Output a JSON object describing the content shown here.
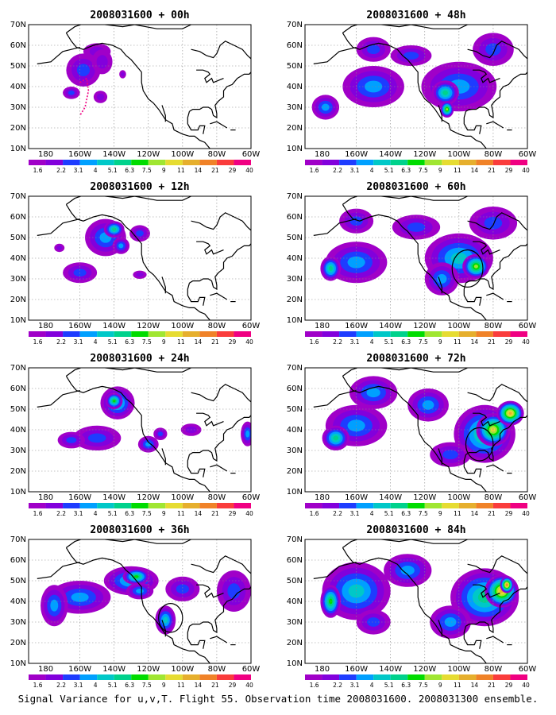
{
  "caption": "Signal Variance for u,v,T. Flight 55. Observation time 2008031600. 2008031300 ensemble.",
  "colorbar": {
    "labels": [
      "1.6",
      "2.2",
      "3.1",
      "4",
      "5.1",
      "6.3",
      "7.5",
      "9",
      "11",
      "14",
      "21",
      "29",
      "40"
    ],
    "colors": [
      "#a000c8",
      "#8200dc",
      "#1e3cff",
      "#00a0ff",
      "#00c8c8",
      "#00d28c",
      "#00dc00",
      "#a0e632",
      "#e6dc32",
      "#e6af2d",
      "#f08228",
      "#fa3c3c",
      "#f00082"
    ]
  },
  "axes": {
    "lon_ticks": [
      "180",
      "160W",
      "140W",
      "120W",
      "100W",
      "80W",
      "60W"
    ],
    "lat_ticks": [
      "10N",
      "20N",
      "30N",
      "40N",
      "50N",
      "60N",
      "70N"
    ]
  },
  "panels": [
    {
      "title": "2008031600 + 00h",
      "blobs": [
        [
          -158,
          48,
          10,
          8,
          2
        ],
        [
          -150,
          57,
          8,
          4,
          1
        ],
        [
          -147,
          52,
          6,
          6,
          1
        ],
        [
          -165,
          37,
          5,
          3,
          2
        ],
        [
          -148,
          35,
          4,
          3,
          1
        ],
        [
          -135,
          46,
          2,
          2,
          1
        ]
      ],
      "track": true
    },
    {
      "title": "2008031600 + 12h",
      "blobs": [
        [
          -145,
          50,
          12,
          9,
          3
        ],
        [
          -140,
          54,
          6,
          4,
          5
        ],
        [
          -160,
          33,
          10,
          5,
          2
        ],
        [
          -136,
          46,
          5,
          4,
          3
        ],
        [
          -125,
          52,
          6,
          4,
          2
        ],
        [
          -172,
          45,
          3,
          2,
          1
        ],
        [
          -125,
          32,
          4,
          2,
          1
        ]
      ]
    },
    {
      "title": "2008031600 + 24h",
      "blobs": [
        [
          -138,
          53,
          10,
          8,
          4
        ],
        [
          -140,
          54,
          5,
          4,
          6
        ],
        [
          -150,
          36,
          14,
          6,
          2
        ],
        [
          -165,
          35,
          8,
          4,
          2
        ],
        [
          -120,
          33,
          6,
          4,
          3
        ],
        [
          -113,
          38,
          4,
          3,
          2
        ],
        [
          -95,
          40,
          6,
          3,
          1
        ],
        [
          -62,
          38,
          4,
          6,
          3
        ]
      ]
    },
    {
      "title": "2008031600 + 36h",
      "blobs": [
        [
          -130,
          50,
          16,
          7,
          4
        ],
        [
          -127,
          52,
          8,
          4,
          6
        ],
        [
          -160,
          42,
          18,
          8,
          3
        ],
        [
          -175,
          38,
          8,
          10,
          3
        ],
        [
          -110,
          31,
          6,
          7,
          4
        ],
        [
          -125,
          45,
          8,
          4,
          3
        ],
        [
          -100,
          46,
          10,
          6,
          2
        ],
        [
          -70,
          45,
          10,
          10,
          2
        ]
      ],
      "circle": [
        -107,
        32,
        7
      ]
    },
    {
      "title": "2008031600 + 48h",
      "blobs": [
        [
          -150,
          40,
          18,
          10,
          3
        ],
        [
          -178,
          30,
          8,
          6,
          3
        ],
        [
          -100,
          40,
          22,
          12,
          3
        ],
        [
          -108,
          37,
          8,
          6,
          5
        ],
        [
          -107,
          29,
          4,
          4,
          7
        ],
        [
          -128,
          55,
          12,
          5,
          2
        ],
        [
          -80,
          58,
          12,
          8,
          2
        ],
        [
          -150,
          58,
          10,
          6,
          2
        ]
      ]
    },
    {
      "title": "2008031600 + 60h",
      "blobs": [
        [
          -160,
          38,
          18,
          10,
          3
        ],
        [
          -175,
          35,
          6,
          6,
          5
        ],
        [
          -100,
          40,
          20,
          12,
          4
        ],
        [
          -90,
          36,
          8,
          6,
          7
        ],
        [
          -125,
          55,
          14,
          6,
          2
        ],
        [
          -80,
          57,
          14,
          8,
          2
        ],
        [
          -160,
          58,
          10,
          6,
          2
        ],
        [
          -110,
          30,
          10,
          8,
          3
        ]
      ],
      "circle": [
        -95,
        35,
        9
      ]
    },
    {
      "title": "2008031600 + 72h",
      "blobs": [
        [
          -160,
          42,
          18,
          10,
          3
        ],
        [
          -172,
          36,
          8,
          6,
          5
        ],
        [
          -150,
          58,
          14,
          8,
          3
        ],
        [
          -85,
          38,
          18,
          14,
          5
        ],
        [
          -80,
          40,
          10,
          8,
          8
        ],
        [
          -70,
          48,
          8,
          6,
          9
        ],
        [
          -118,
          52,
          12,
          8,
          3
        ],
        [
          -105,
          28,
          12,
          6,
          2
        ]
      ],
      "circle": [
        -88,
        33,
        8
      ]
    },
    {
      "title": "2008031600 + 84h",
      "blobs": [
        [
          -160,
          45,
          20,
          14,
          4
        ],
        [
          -175,
          40,
          6,
          8,
          6
        ],
        [
          -130,
          55,
          14,
          8,
          3
        ],
        [
          -85,
          42,
          20,
          14,
          5
        ],
        [
          -75,
          45,
          10,
          8,
          9
        ],
        [
          -72,
          48,
          4,
          4,
          10
        ],
        [
          -105,
          30,
          12,
          8,
          3
        ],
        [
          -150,
          30,
          10,
          6,
          2
        ]
      ]
    }
  ]
}
